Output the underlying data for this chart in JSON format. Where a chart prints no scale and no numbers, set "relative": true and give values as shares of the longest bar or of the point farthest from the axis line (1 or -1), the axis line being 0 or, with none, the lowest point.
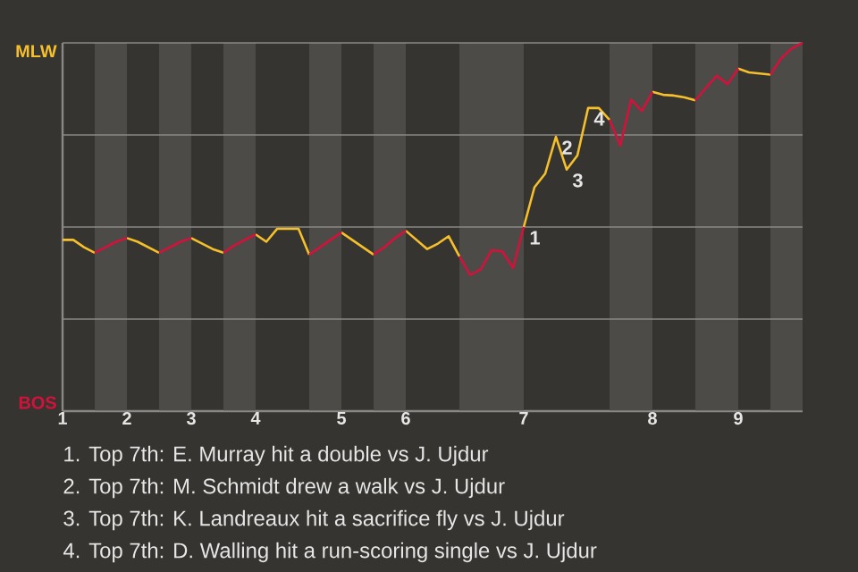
{
  "chart_data": {
    "type": "line",
    "relative": true,
    "categories": [
      "1",
      null,
      null,
      null,
      null,
      null,
      "2",
      null,
      null,
      null,
      null,
      null,
      "3",
      null,
      null,
      null,
      null,
      null,
      "4",
      null,
      null,
      null,
      null,
      null,
      null,
      null,
      "5",
      null,
      null,
      null,
      null,
      null,
      "6",
      null,
      null,
      null,
      null,
      null,
      null,
      null,
      null,
      null,
      null,
      "7",
      null,
      null,
      null,
      null,
      null,
      null,
      null,
      null,
      null,
      null,
      null,
      "8",
      null,
      null,
      null,
      null,
      null,
      null,
      null,
      "9",
      null,
      null,
      null,
      null,
      null,
      null
    ],
    "grid": "y",
    "line_style": "solid",
    "series": [
      {
        "color": "#f5c02c",
        "values": [
          0.465,
          0.465,
          0.445,
          0.43,
          null,
          null,
          0.47,
          0.46,
          0.445,
          0.43,
          null,
          null,
          0.47,
          0.455,
          0.44,
          0.43,
          null,
          null,
          0.48,
          0.46,
          0.495,
          0.495,
          0.495,
          0.425,
          null,
          null,
          0.485,
          0.465,
          0.445,
          0.425,
          null,
          null,
          0.49,
          0.465,
          0.44,
          0.455,
          0.475,
          0.42,
          null,
          null,
          null,
          null,
          null,
          0.5,
          0.608,
          0.645,
          0.745,
          0.656,
          0.694,
          0.823,
          0.823,
          0.791,
          null,
          null,
          null,
          0.867,
          0.859,
          0.857,
          0.852,
          0.844,
          null,
          null,
          null,
          0.93,
          0.92,
          0.917,
          0.914,
          null,
          null,
          null
        ]
      },
      {
        "color": "#d2123a",
        "values": [
          null,
          null,
          null,
          0.43,
          0.445,
          0.46,
          0.47,
          null,
          null,
          0.43,
          0.445,
          0.46,
          0.47,
          null,
          null,
          0.43,
          0.45,
          0.465,
          0.48,
          null,
          null,
          null,
          null,
          0.425,
          0.445,
          0.465,
          0.485,
          null,
          null,
          0.425,
          0.445,
          0.47,
          0.49,
          null,
          null,
          null,
          null,
          0.42,
          0.37,
          0.385,
          0.437,
          0.434,
          0.389,
          0.5,
          null,
          null,
          null,
          null,
          null,
          null,
          null,
          0.791,
          0.721,
          0.846,
          0.815,
          0.867,
          null,
          null,
          null,
          0.844,
          0.878,
          0.911,
          0.888,
          0.93,
          null,
          null,
          0.914,
          0.958,
          0.985,
          1.0
        ]
      }
    ],
    "annotations": [
      "1",
      "2",
      "3",
      "4",
      "MLW",
      "BOS",
      "1. Top 7th: E. Murray hit a double vs J. Ujdur",
      "2. Top 7th: M. Schmidt drew a walk vs J. Ujdur",
      "3. Top 7th: K. Landreaux hit a sacrifice fly vs J. Ujdur",
      "4. Top 7th: D. Walling hit a run-scoring single vs J. Ujdur"
    ]
  }
}
